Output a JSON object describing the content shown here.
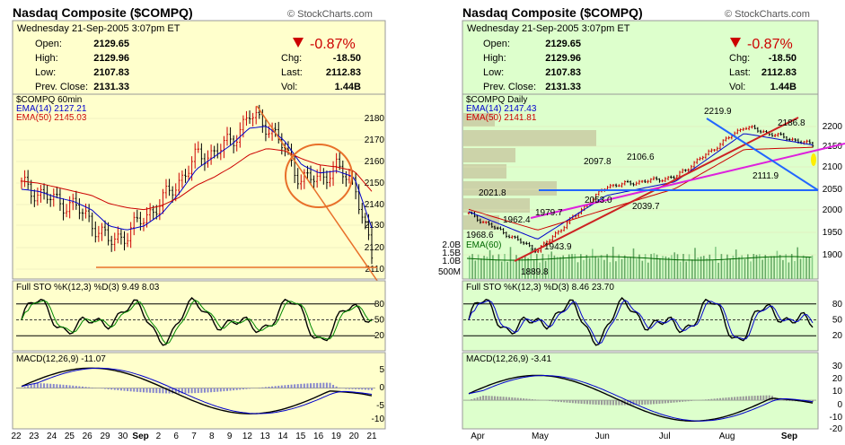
{
  "charts": [
    {
      "title": "Nasdaq Composite ($COMPQ)",
      "watermark": "© StockCharts.com",
      "date": "Wednesday  21-Sep-2005  3:07pm ET",
      "change_pct": "-0.87%",
      "stats_left": [
        {
          "label": "Open:",
          "value": "2129.65"
        },
        {
          "label": "High:",
          "value": "2129.96"
        },
        {
          "label": "Low:",
          "value": "2107.83"
        },
        {
          "label": "Prev. Close:",
          "value": "2131.33"
        }
      ],
      "stats_right": [
        {
          "label": "Chg:",
          "value": "-18.50"
        },
        {
          "label": "Last:",
          "value": "2112.83"
        },
        {
          "label": "Vol:",
          "value": "1.44B"
        }
      ],
      "price_panel": {
        "label": "$COMPQ 60min",
        "ema_fast": "EMA(14) 2127.21",
        "ema_slow": "EMA(50) 2145.03",
        "y_ticks": [
          "2180",
          "2170",
          "2160",
          "2150",
          "2140",
          "2130",
          "2120",
          "2110"
        ]
      },
      "sto_label": "Full STO %K(12,3) %D(3)  9.49  8.03",
      "sto_ticks": [
        "80",
        "50",
        "20"
      ],
      "macd_label": "MACD(12,26,9) -11.07",
      "macd_ticks": [
        "5",
        "0",
        "-5",
        "-10"
      ],
      "x_ticks": [
        "22",
        "23",
        "24",
        "25",
        "26",
        "29",
        "30",
        "Sep",
        "2",
        "6",
        "7",
        "8",
        "9",
        "12",
        "13",
        "14",
        "15",
        "16",
        "19",
        "20",
        "21"
      ]
    },
    {
      "title": "Nasdaq Composite ($COMPQ)",
      "watermark": "© StockCharts.com",
      "date": "Wednesday  21-Sep-2005  3:07pm ET",
      "change_pct": "-0.87%",
      "stats_left": [
        {
          "label": "Open:",
          "value": "2129.65"
        },
        {
          "label": "High:",
          "value": "2129.96"
        },
        {
          "label": "Low:",
          "value": "2107.83"
        },
        {
          "label": "Prev. Close:",
          "value": "2131.33"
        }
      ],
      "stats_right": [
        {
          "label": "Chg:",
          "value": "-18.50"
        },
        {
          "label": "Last:",
          "value": "2112.83"
        },
        {
          "label": "Vol:",
          "value": "1.44B"
        }
      ],
      "price_panel": {
        "label": "$COMPQ Daily",
        "ema_fast": "EMA(14) 2147.43",
        "ema_slow": "EMA(50) 2141.81",
        "vol_label": "EMA(60)",
        "y_ticks": [
          "2200",
          "2150",
          "2100",
          "2050",
          "2000",
          "1950",
          "1900"
        ],
        "vol_ticks": [
          "2.0B",
          "1.5B",
          "1.0B",
          "500M"
        ],
        "annotations": [
          "2219.9",
          "2186.8",
          "2097.8",
          "2106.6",
          "2021.8",
          "2053.0",
          "1979.7",
          "1962.4",
          "2039.7",
          "2111.9",
          "1968.6",
          "1943.9",
          "1889.8"
        ]
      },
      "sto_label": "Full STO %K(12,3) %D(3)  8.46  23.70",
      "sto_ticks": [
        "80",
        "50",
        "20"
      ],
      "macd_label": "MACD(12,26,9) -3.41",
      "macd_ticks": [
        "30",
        "20",
        "10",
        "0",
        "-10",
        "-20"
      ],
      "x_ticks": [
        "Apr",
        "May",
        "Jun",
        "Jul",
        "Aug",
        "Sep"
      ]
    }
  ],
  "chart_data": [
    {
      "type": "line",
      "title": "Nasdaq Composite ($COMPQ) 60min",
      "x": [
        "22",
        "23",
        "24",
        "25",
        "26",
        "29",
        "30",
        "Sep",
        "2",
        "6",
        "7",
        "8",
        "9",
        "12",
        "13",
        "14",
        "15",
        "16",
        "19",
        "20",
        "21"
      ],
      "series": [
        {
          "name": "$COMPQ 60min",
          "values": [
            2148,
            2144,
            2140,
            2138,
            2130,
            2120,
            2124,
            2132,
            2140,
            2150,
            2162,
            2164,
            2170,
            2182,
            2178,
            2166,
            2150,
            2152,
            2156,
            2150,
            2112
          ]
        },
        {
          "name": "EMA(14)",
          "values": [
            2146,
            2145,
            2142,
            2140,
            2136,
            2128,
            2126,
            2128,
            2134,
            2144,
            2156,
            2162,
            2168,
            2176,
            2177,
            2170,
            2158,
            2154,
            2155,
            2152,
            2127
          ]
        },
        {
          "name": "EMA(50)",
          "values": [
            2150,
            2149,
            2147,
            2145,
            2143,
            2139,
            2137,
            2136,
            2138,
            2142,
            2148,
            2152,
            2157,
            2163,
            2166,
            2165,
            2161,
            2158,
            2157,
            2155,
            2145
          ]
        }
      ],
      "ylim": [
        2105,
        2187
      ],
      "panels": {
        "sto_range": [
          0,
          100
        ],
        "macd_range": [
          -13,
          8
        ]
      }
    },
    {
      "type": "line",
      "title": "Nasdaq Composite ($COMPQ) Daily",
      "x": [
        "Apr",
        "May",
        "Jun",
        "Jul",
        "Aug",
        "Sep"
      ],
      "series": [
        {
          "name": "$COMPQ Daily",
          "values": [
            2000,
            1920,
            2060,
            2080,
            2190,
            2150
          ]
        },
        {
          "name": "EMA(14)",
          "values": [
            2005,
            1945,
            2040,
            2070,
            2175,
            2150
          ]
        },
        {
          "name": "EMA(50)",
          "values": [
            2010,
            1965,
            2010,
            2055,
            2140,
            2145
          ]
        }
      ],
      "ylim": [
        1880,
        2235
      ],
      "panels": {
        "sto_range": [
          0,
          100
        ],
        "macd_range": [
          -25,
          35
        ]
      }
    }
  ]
}
